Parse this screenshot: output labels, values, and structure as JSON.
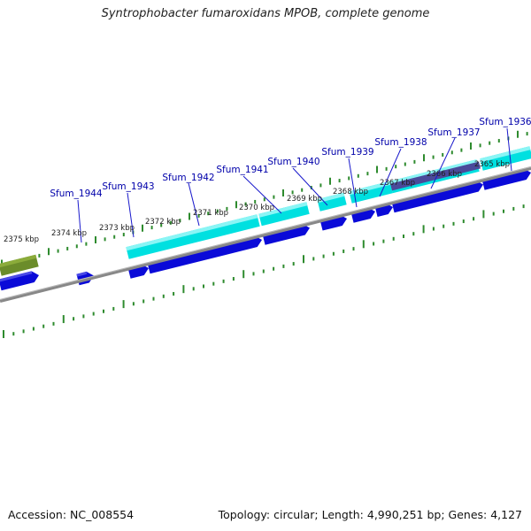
{
  "title": "Syntrophobacter fumaroxidans MPOB, complete genome",
  "footer": {
    "accession": "Accession: NC_008554",
    "summary": "Topology: circular; Length: 4,990,251 bp; Genes: 4,127"
  },
  "colors": {
    "background": "#ffffff",
    "tick": "#2e8b2e",
    "kbp_label": "#222222",
    "gene_label": "#0000aa",
    "callout_line": "#1a1acc",
    "cds": "#0a0ad8",
    "cds_highlight": "#4a4ae6",
    "rna": "#00e0e0",
    "rna_highlight": "#8af5f5",
    "repeat": "#4a4a9a",
    "other_feature": "#6b8c2a",
    "backbone": "#888888"
  },
  "kbp_labels": [
    "2375 kbp",
    "2374 kbp",
    "2373 kbp",
    "2372 kbp",
    "2371 kbp",
    "2370 kbp",
    "2369 kbp",
    "2368 kbp",
    "2367 kbp",
    "2366 kbp",
    "2365 kbp"
  ],
  "gene_labels": [
    "Sfum_1944",
    "Sfum_1943",
    "Sfum_1942",
    "Sfum_1941",
    "Sfum_1940",
    "Sfum_1939",
    "Sfum_1938",
    "Sfum_1937",
    "Sfum_1936"
  ]
}
